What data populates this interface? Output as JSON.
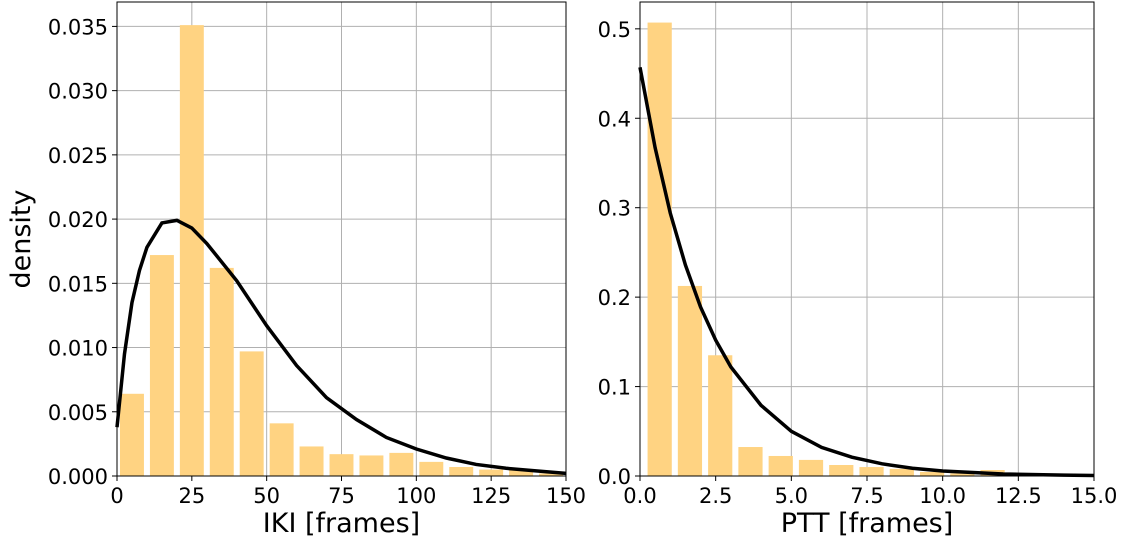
{
  "chart_data": [
    {
      "type": "histogram",
      "xlabel": "IKI [frames]",
      "ylabel": "density",
      "bins": [
        0,
        10,
        20,
        30,
        40,
        50,
        60,
        70,
        80,
        90,
        100,
        110,
        120,
        130,
        140,
        150
      ],
      "values": [
        0.0064,
        0.0172,
        0.0351,
        0.0162,
        0.0097,
        0.0041,
        0.0023,
        0.0017,
        0.0016,
        0.0018,
        0.0011,
        0.0007,
        0.0005,
        0.0005,
        0.0002
      ],
      "color": "#ffd382",
      "fit": {
        "color": "#000000",
        "x": [
          0,
          2.5,
          5,
          7.5,
          10,
          15,
          20,
          25,
          30,
          40,
          50,
          60,
          70,
          80,
          90,
          100,
          110,
          120,
          130,
          140,
          150
        ],
        "values": [
          0.0038,
          0.0095,
          0.0135,
          0.016,
          0.0178,
          0.0197,
          0.0199,
          0.0193,
          0.0181,
          0.0152,
          0.0117,
          0.0086,
          0.0061,
          0.0044,
          0.003,
          0.0021,
          0.0014,
          0.0009,
          0.0006,
          0.0004,
          0.0002
        ]
      },
      "xlim": [
        0,
        150
      ],
      "xticks": [
        0,
        25,
        50,
        75,
        100,
        125,
        150
      ],
      "ylim": [
        0,
        0.0369
      ],
      "yticks": [
        {
          "value": 0,
          "label": "0.000"
        },
        0.005,
        {
          "value": 0.01,
          "label": "0.010"
        },
        0.015,
        {
          "value": 0.02,
          "label": "0.020"
        },
        0.025,
        {
          "value": 0.03,
          "label": "0.030"
        },
        0.035
      ],
      "grid": true
    },
    {
      "type": "histogram",
      "xlabel": "PTT [frames]",
      "bins": [
        0.15,
        1.15,
        2.15,
        3.15,
        4.15,
        5.15,
        6.15,
        7.15,
        8.15,
        9.15,
        10.15,
        11.15,
        12.15,
        13.15,
        14.15
      ],
      "values": [
        0.507,
        0.2125,
        0.135,
        0.0324,
        0.0224,
        0.018,
        0.0123,
        0.01,
        0.008,
        0.0045,
        0.003,
        0.0067,
        0.002,
        0.0015
      ],
      "color": "#ffd382",
      "fit": {
        "color": "#000000",
        "x": [
          0,
          0.5,
          1,
          1.5,
          2,
          2.5,
          3,
          4,
          5,
          6,
          7,
          8,
          9,
          10,
          12,
          14,
          15
        ],
        "values": [
          0.457,
          0.367,
          0.294,
          0.236,
          0.189,
          0.152,
          0.122,
          0.079,
          0.05,
          0.032,
          0.021,
          0.0136,
          0.0087,
          0.0056,
          0.0023,
          0.001,
          0.0006
        ]
      },
      "xlim": [
        0,
        15
      ],
      "xticks": [
        {
          "value": 0,
          "label": "0.0"
        },
        2.5,
        {
          "value": 5,
          "label": "5.0"
        },
        7.5,
        {
          "value": 10,
          "label": "10.0"
        },
        12.5,
        {
          "value": 15,
          "label": "15.0"
        }
      ],
      "ylim": [
        0,
        0.53
      ],
      "yticks": [
        {
          "value": 0,
          "label": "0.0"
        },
        0.1,
        0.2,
        0.3,
        0.4,
        0.5
      ],
      "grid": true
    }
  ]
}
